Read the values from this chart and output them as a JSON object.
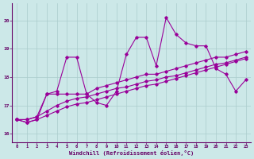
{
  "x": [
    0,
    1,
    2,
    3,
    4,
    5,
    6,
    7,
    8,
    9,
    10,
    11,
    12,
    13,
    14,
    15,
    16,
    17,
    18,
    19,
    20,
    21,
    22,
    23
  ],
  "series1": [
    16.5,
    16.4,
    16.5,
    17.4,
    17.5,
    18.7,
    18.7,
    17.4,
    17.1,
    17.0,
    17.5,
    18.8,
    19.4,
    19.4,
    18.4,
    20.1,
    19.5,
    19.2,
    19.1,
    19.1,
    18.3,
    18.1,
    17.5,
    17.9
  ],
  "series2": [
    16.5,
    16.5,
    16.6,
    17.4,
    17.4,
    17.4,
    17.4,
    17.4,
    17.6,
    17.7,
    17.8,
    17.9,
    18.0,
    18.1,
    18.1,
    18.2,
    18.3,
    18.4,
    18.5,
    18.6,
    18.7,
    18.7,
    18.8,
    18.9
  ],
  "series3": [
    16.5,
    16.5,
    16.6,
    16.8,
    17.0,
    17.15,
    17.25,
    17.3,
    17.4,
    17.5,
    17.6,
    17.65,
    17.75,
    17.85,
    17.9,
    18.0,
    18.05,
    18.15,
    18.25,
    18.35,
    18.45,
    18.5,
    18.6,
    18.7
  ],
  "series4": [
    16.5,
    16.4,
    16.5,
    16.65,
    16.8,
    16.95,
    17.05,
    17.1,
    17.2,
    17.3,
    17.4,
    17.5,
    17.6,
    17.7,
    17.75,
    17.85,
    17.95,
    18.05,
    18.15,
    18.25,
    18.35,
    18.45,
    18.55,
    18.65
  ],
  "line_color": "#990099",
  "bg_color": "#cce8e8",
  "grid_color": "#aacccc",
  "axis_color": "#660066",
  "ylabel_values": [
    16,
    17,
    18,
    19,
    20
  ],
  "xlabel": "Windchill (Refroidissement éolien,°C)",
  "ylim": [
    15.7,
    20.6
  ],
  "xlim": [
    -0.5,
    23.5
  ]
}
